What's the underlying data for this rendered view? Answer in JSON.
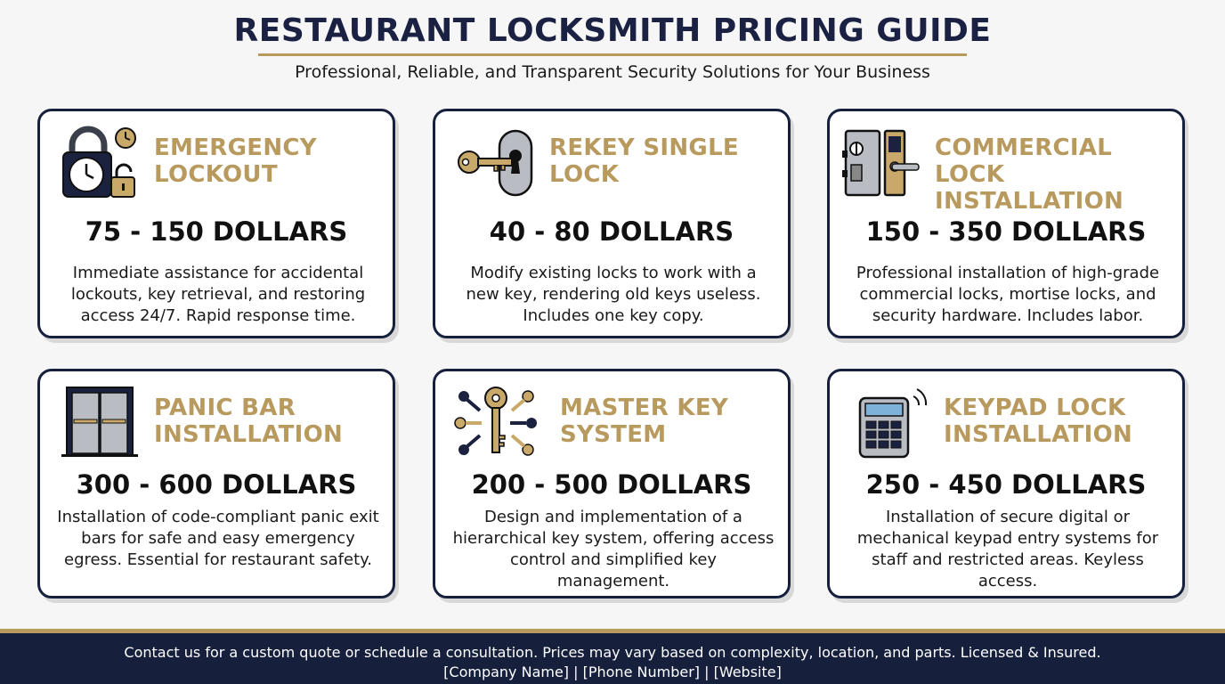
{
  "header": {
    "title": "RESTAURANT LOCKSMITH PRICING GUIDE",
    "subtitle": "Professional, Reliable, and Transparent Security Solutions for Your Business"
  },
  "colors": {
    "navy": "#16203d",
    "gold": "#b89a5e",
    "background": "#f6f6f6"
  },
  "cards": [
    {
      "icon": "padlock-clock-icon",
      "name": "EMERGENCY LOCKOUT",
      "price": "75 - 150 DOLLARS",
      "description": "Immediate assistance for accidental lockouts, key retrieval, and restoring access 24/7. Rapid response time."
    },
    {
      "icon": "key-lock-icon",
      "name": "REKEY SINGLE LOCK",
      "price": "40 - 80 DOLLARS",
      "description": "Modify existing locks to work with a new key, rendering old keys useless. Includes one key copy."
    },
    {
      "icon": "mortise-lock-icon",
      "name": "COMMERCIAL LOCK INSTALLATION",
      "price": "150 - 350 DOLLARS",
      "description": "Professional installation of high-grade commercial locks, mortise locks, and security hardware. Includes labor."
    },
    {
      "icon": "double-door-panic-bar-icon",
      "name": "PANIC BAR INSTALLATION",
      "price": "300 - 600 DOLLARS",
      "description": "Installation of code-compliant panic exit bars for safe and easy emergency egress. Essential for restaurant safety."
    },
    {
      "icon": "master-key-icon",
      "name": "MASTER KEY SYSTEM",
      "price": "200 - 500 DOLLARS",
      "description": "Design and implementation of a hierarchical key system, offering access control and simplified key management."
    },
    {
      "icon": "keypad-icon",
      "name": "KEYPAD LOCK INSTALLATION",
      "price": "250 - 450 DOLLARS",
      "description": "Installation of secure digital or mechanical keypad entry systems for staff and restricted areas. Keyless access."
    }
  ],
  "footer": {
    "line1": "Contact us for a custom quote or schedule a consultation. Prices may vary based on complexity, location, and parts. Licensed & Insured.",
    "line2": "[Company Name] | [Phone Number] | [Website]"
  }
}
